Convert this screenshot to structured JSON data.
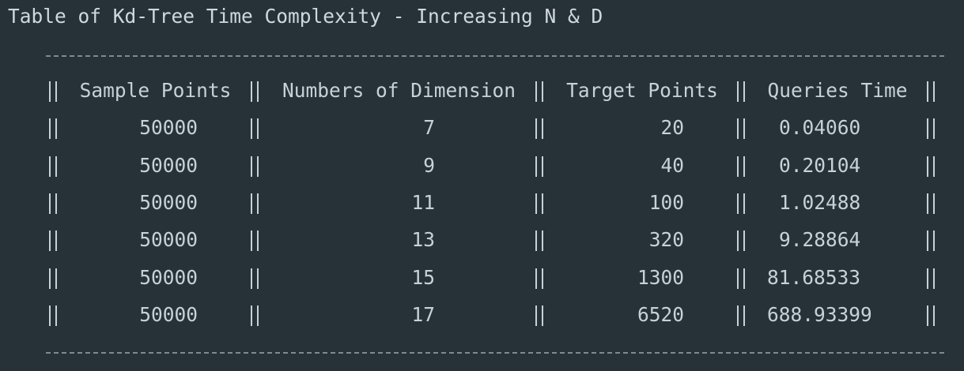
{
  "title": "Table of Kd-Tree Time Complexity - Increasing N & D",
  "table": {
    "headers": [
      "Sample Points",
      "Numbers of Dimension",
      "Target Points",
      "Queries Time"
    ],
    "rows": [
      [
        "50000",
        "7",
        "20",
        "0.04060"
      ],
      [
        "50000",
        "9",
        "40",
        "0.20104"
      ],
      [
        "50000",
        "11",
        "100",
        "1.02488"
      ],
      [
        "50000",
        "13",
        "320",
        "9.28864"
      ],
      [
        "50000",
        "15",
        "1300",
        "81.68533"
      ],
      [
        "50000",
        "17",
        "6520",
        "688.93399"
      ]
    ]
  }
}
